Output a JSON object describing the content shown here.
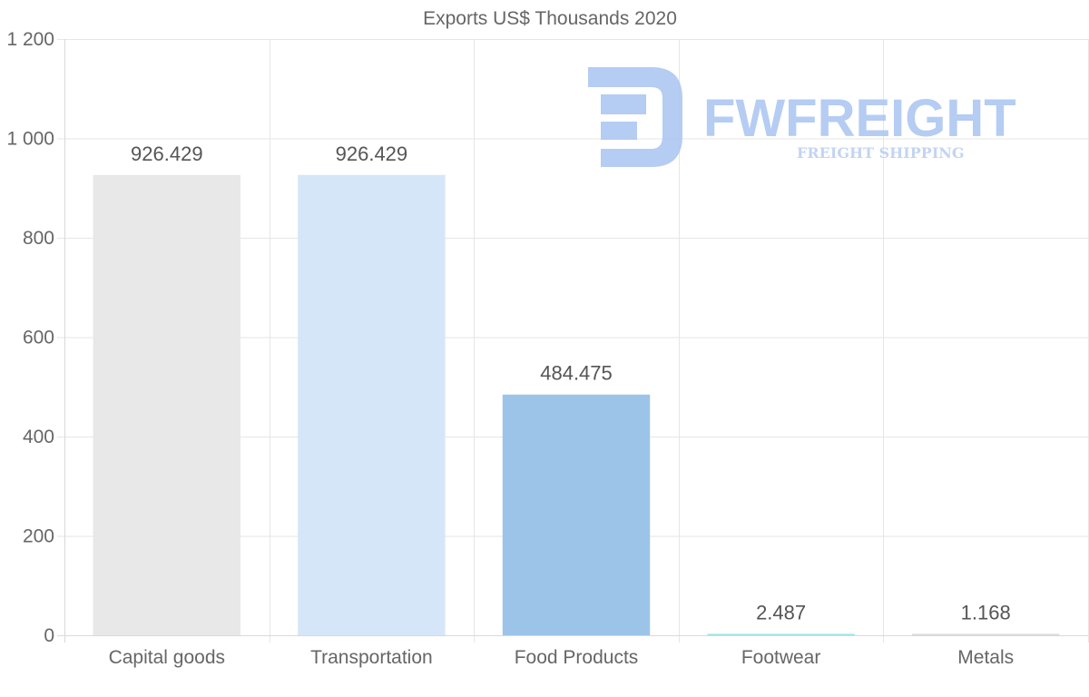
{
  "chart_data": {
    "type": "bar",
    "title": "Exports US$ Thousands 2020",
    "categories": [
      "Capital goods",
      "Transportation",
      "Food Products",
      "Footwear",
      "Metals"
    ],
    "values": [
      926.429,
      926.429,
      484.475,
      2.487,
      1.168
    ],
    "value_labels": [
      "926.429",
      "926.429",
      "484.475",
      "2.487",
      "1.168"
    ],
    "colors": [
      "#e8e8e8",
      "#d6e6f9",
      "#9cc4e8",
      "#9be3e3",
      "#d9d9d9"
    ],
    "ylim": [
      0,
      1200
    ],
    "yticks": [
      0,
      200,
      400,
      600,
      800,
      1000,
      1200
    ],
    "ytick_labels": [
      "0",
      "200",
      "400",
      "600",
      "800",
      "1 000",
      "1 200"
    ],
    "xlabel": "",
    "ylabel": "",
    "grid": true,
    "legend": "none"
  },
  "watermark": {
    "brand": "FWFREIGHT",
    "tagline": "FREIGHT SHIPPING",
    "color": "#a9c4f2"
  }
}
